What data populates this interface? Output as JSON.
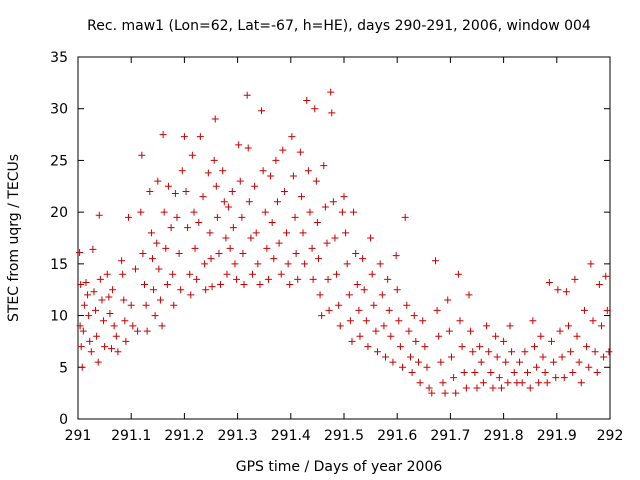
{
  "chart_data": {
    "type": "scatter",
    "title": "Rec. maw1 (Lon=62, Lat=-67, h=HE), days 290-291, 2006, window 004",
    "xlabel": "GPS time / Days of year 2006",
    "ylabel": "STEC from uqrg / TECUs",
    "xlim": [
      291,
      292
    ],
    "ylim": [
      0,
      35
    ],
    "x_ticks": [
      291,
      291.1,
      291.2,
      291.3,
      291.4,
      291.5,
      291.6,
      291.7,
      291.8,
      291.9,
      292
    ],
    "x_tick_labels": [
      "291",
      "291.1",
      "291.2",
      "291.3",
      "291.4",
      "291.5",
      "291.6",
      "291.7",
      "291.8",
      "291.9",
      "292"
    ],
    "y_ticks": [
      0,
      5,
      10,
      15,
      20,
      25,
      30,
      35
    ],
    "y_tick_labels": [
      "0",
      "5",
      "10",
      "15",
      "20",
      "25",
      "30",
      "35"
    ],
    "grid": false,
    "legend": "none",
    "marker": "+",
    "colors": {
      "points": "#cc0000",
      "axes": "#000000"
    },
    "series": [
      {
        "points": [
          [
            291.003,
            16.1
          ],
          [
            291.005,
            13.0
          ],
          [
            291.004,
            9.0
          ],
          [
            291.006,
            7.0
          ],
          [
            291.008,
            5.0
          ],
          [
            291.01,
            8.5
          ],
          [
            291.012,
            11.0
          ],
          [
            291.015,
            13.2
          ],
          [
            291.018,
            12.0
          ],
          [
            291.02,
            10.0
          ],
          [
            291.022,
            7.5
          ],
          [
            291.025,
            6.5
          ],
          [
            291.028,
            16.4
          ],
          [
            291.03,
            12.3
          ],
          [
            291.033,
            10.5
          ],
          [
            291.035,
            8.0
          ],
          [
            291.038,
            5.5
          ],
          [
            291.04,
            19.7
          ],
          [
            291.042,
            13.5
          ],
          [
            291.045,
            11.5
          ],
          [
            291.048,
            9.5
          ],
          [
            291.05,
            7.0
          ],
          [
            291.055,
            14.0
          ],
          [
            291.058,
            11.8
          ],
          [
            291.06,
            10.2
          ],
          [
            291.063,
            6.8
          ],
          [
            291.065,
            12.5
          ],
          [
            291.068,
            9.0
          ],
          [
            291.072,
            8.0
          ],
          [
            291.075,
            6.5
          ],
          [
            291.082,
            15.3
          ],
          [
            291.084,
            14.0
          ],
          [
            291.086,
            11.5
          ],
          [
            291.088,
            9.5
          ],
          [
            291.09,
            7.5
          ],
          [
            291.095,
            19.5
          ],
          [
            291.1,
            11.0
          ],
          [
            291.103,
            9.0
          ],
          [
            291.108,
            14.5
          ],
          [
            291.112,
            8.5
          ],
          [
            291.118,
            20.0
          ],
          [
            291.12,
            25.5
          ],
          [
            291.122,
            16.0
          ],
          [
            291.125,
            13.0
          ],
          [
            291.128,
            11.0
          ],
          [
            291.13,
            8.5
          ],
          [
            291.135,
            22.0
          ],
          [
            291.138,
            18.0
          ],
          [
            291.14,
            15.5
          ],
          [
            291.142,
            12.5
          ],
          [
            291.145,
            10.0
          ],
          [
            291.148,
            17.0
          ],
          [
            291.15,
            23.0
          ],
          [
            291.152,
            14.5
          ],
          [
            291.155,
            11.5
          ],
          [
            291.158,
            9.0
          ],
          [
            291.16,
            27.5
          ],
          [
            291.162,
            20.0
          ],
          [
            291.165,
            16.5
          ],
          [
            291.168,
            13.0
          ],
          [
            291.17,
            22.5
          ],
          [
            291.175,
            18.5
          ],
          [
            291.178,
            14.0
          ],
          [
            291.18,
            11.0
          ],
          [
            291.183,
            21.8
          ],
          [
            291.186,
            19.5
          ],
          [
            291.19,
            16.0
          ],
          [
            291.193,
            12.5
          ],
          [
            291.196,
            24.0
          ],
          [
            291.2,
            27.3
          ],
          [
            291.203,
            22.0
          ],
          [
            291.206,
            18.5
          ],
          [
            291.21,
            14.0
          ],
          [
            291.212,
            12.0
          ],
          [
            291.215,
            25.5
          ],
          [
            291.218,
            20.0
          ],
          [
            291.22,
            16.5
          ],
          [
            291.223,
            13.5
          ],
          [
            291.227,
            19.0
          ],
          [
            291.23,
            27.3
          ],
          [
            291.235,
            21.5
          ],
          [
            291.238,
            15.0
          ],
          [
            291.24,
            12.5
          ],
          [
            291.245,
            23.8
          ],
          [
            291.248,
            18.0
          ],
          [
            291.25,
            15.5
          ],
          [
            291.252,
            12.8
          ],
          [
            291.256,
            25.0
          ],
          [
            291.258,
            29.0
          ],
          [
            291.26,
            22.5
          ],
          [
            291.262,
            19.5
          ],
          [
            291.265,
            16.0
          ],
          [
            291.268,
            13.0
          ],
          [
            291.272,
            24.0
          ],
          [
            291.275,
            21.0
          ],
          [
            291.278,
            17.5
          ],
          [
            291.28,
            14.0
          ],
          [
            291.283,
            20.5
          ],
          [
            291.286,
            16.5
          ],
          [
            291.29,
            22.0
          ],
          [
            291.292,
            18.5
          ],
          [
            291.295,
            15.0
          ],
          [
            291.298,
            13.5
          ],
          [
            291.302,
            26.5
          ],
          [
            291.305,
            23.0
          ],
          [
            291.308,
            19.5
          ],
          [
            291.31,
            16.0
          ],
          [
            291.312,
            13.0
          ],
          [
            291.318,
            31.3
          ],
          [
            291.32,
            26.2
          ],
          [
            291.322,
            21.0
          ],
          [
            291.325,
            17.5
          ],
          [
            291.328,
            14.0
          ],
          [
            291.332,
            22.5
          ],
          [
            291.335,
            18.0
          ],
          [
            291.338,
            15.0
          ],
          [
            291.342,
            13.0
          ],
          [
            291.345,
            29.8
          ],
          [
            291.348,
            24.0
          ],
          [
            291.352,
            20.0
          ],
          [
            291.355,
            16.5
          ],
          [
            291.358,
            13.5
          ],
          [
            291.362,
            23.5
          ],
          [
            291.365,
            19.0
          ],
          [
            291.368,
            15.5
          ],
          [
            291.372,
            25.0
          ],
          [
            291.375,
            21.0
          ],
          [
            291.378,
            17.0
          ],
          [
            291.382,
            14.0
          ],
          [
            291.385,
            26.0
          ],
          [
            291.388,
            22.0
          ],
          [
            291.392,
            18.0
          ],
          [
            291.395,
            15.0
          ],
          [
            291.398,
            13.0
          ],
          [
            291.402,
            27.3
          ],
          [
            291.405,
            23.5
          ],
          [
            291.408,
            19.5
          ],
          [
            291.41,
            16.0
          ],
          [
            291.413,
            13.5
          ],
          [
            291.418,
            25.8
          ],
          [
            291.42,
            21.5
          ],
          [
            291.423,
            18.0
          ],
          [
            291.426,
            15.0
          ],
          [
            291.43,
            30.8
          ],
          [
            291.433,
            24.0
          ],
          [
            291.436,
            20.0
          ],
          [
            291.44,
            16.5
          ],
          [
            291.442,
            13.5
          ],
          [
            291.445,
            30.0
          ],
          [
            291.448,
            23.0
          ],
          [
            291.45,
            19.0
          ],
          [
            291.452,
            15.5
          ],
          [
            291.455,
            12.0
          ],
          [
            291.458,
            10.0
          ],
          [
            291.462,
            24.5
          ],
          [
            291.465,
            20.5
          ],
          [
            291.468,
            17.0
          ],
          [
            291.47,
            13.5
          ],
          [
            291.472,
            10.5
          ],
          [
            291.475,
            31.6
          ],
          [
            291.477,
            29.6
          ],
          [
            291.48,
            21.0
          ],
          [
            291.483,
            17.5
          ],
          [
            291.486,
            14.0
          ],
          [
            291.49,
            11.0
          ],
          [
            291.493,
            9.0
          ],
          [
            291.497,
            20.0
          ],
          [
            291.5,
            21.5
          ],
          [
            291.503,
            18.0
          ],
          [
            291.506,
            15.0
          ],
          [
            291.51,
            12.0
          ],
          [
            291.512,
            9.5
          ],
          [
            291.515,
            7.5
          ],
          [
            291.518,
            20.0
          ],
          [
            291.522,
            16.0
          ],
          [
            291.525,
            13.0
          ],
          [
            291.528,
            10.5
          ],
          [
            291.53,
            8.0
          ],
          [
            291.535,
            15.5
          ],
          [
            291.538,
            12.5
          ],
          [
            291.542,
            9.5
          ],
          [
            291.545,
            7.0
          ],
          [
            291.55,
            17.5
          ],
          [
            291.553,
            14.0
          ],
          [
            291.556,
            11.0
          ],
          [
            291.56,
            8.5
          ],
          [
            291.563,
            6.5
          ],
          [
            291.568,
            15.0
          ],
          [
            291.572,
            12.0
          ],
          [
            291.575,
            9.0
          ],
          [
            291.578,
            6.0
          ],
          [
            291.582,
            13.5
          ],
          [
            291.585,
            10.5
          ],
          [
            291.588,
            8.0
          ],
          [
            291.592,
            5.5
          ],
          [
            291.598,
            15.8
          ],
          [
            291.6,
            12.5
          ],
          [
            291.603,
            9.5
          ],
          [
            291.606,
            7.0
          ],
          [
            291.61,
            5.0
          ],
          [
            291.615,
            19.5
          ],
          [
            291.618,
            11.0
          ],
          [
            291.622,
            8.5
          ],
          [
            291.625,
            6.0
          ],
          [
            291.628,
            4.5
          ],
          [
            291.632,
            10.0
          ],
          [
            291.635,
            7.5
          ],
          [
            291.64,
            5.5
          ],
          [
            291.643,
            3.5
          ],
          [
            291.648,
            9.5
          ],
          [
            291.652,
            7.0
          ],
          [
            291.656,
            5.0
          ],
          [
            291.66,
            3.0
          ],
          [
            291.665,
            2.5
          ],
          [
            291.672,
            15.3
          ],
          [
            291.675,
            10.5
          ],
          [
            291.678,
            8.0
          ],
          [
            291.682,
            5.5
          ],
          [
            291.686,
            3.5
          ],
          [
            291.69,
            2.5
          ],
          [
            291.695,
            11.5
          ],
          [
            291.698,
            8.5
          ],
          [
            291.702,
            6.0
          ],
          [
            291.706,
            4.0
          ],
          [
            291.71,
            2.5
          ],
          [
            291.715,
            14.0
          ],
          [
            291.718,
            9.5
          ],
          [
            291.722,
            7.0
          ],
          [
            291.726,
            4.5
          ],
          [
            291.73,
            3.0
          ],
          [
            291.735,
            12.0
          ],
          [
            291.738,
            8.5
          ],
          [
            291.742,
            6.5
          ],
          [
            291.746,
            4.5
          ],
          [
            291.75,
            3.0
          ],
          [
            291.755,
            7.0
          ],
          [
            291.758,
            5.5
          ],
          [
            291.762,
            3.5
          ],
          [
            291.768,
            9.0
          ],
          [
            291.772,
            6.5
          ],
          [
            291.776,
            4.5
          ],
          [
            291.78,
            3.0
          ],
          [
            291.785,
            8.0
          ],
          [
            291.788,
            6.0
          ],
          [
            291.792,
            4.0
          ],
          [
            291.796,
            3.0
          ],
          [
            291.8,
            7.5
          ],
          [
            291.804,
            5.5
          ],
          [
            291.808,
            3.5
          ],
          [
            291.812,
            9.0
          ],
          [
            291.815,
            6.5
          ],
          [
            291.82,
            4.5
          ],
          [
            291.825,
            3.5
          ],
          [
            291.83,
            5.5
          ],
          [
            291.835,
            3.5
          ],
          [
            291.84,
            6.5
          ],
          [
            291.845,
            4.5
          ],
          [
            291.85,
            3.0
          ],
          [
            291.855,
            9.5
          ],
          [
            291.858,
            7.0
          ],
          [
            291.862,
            5.0
          ],
          [
            291.866,
            3.5
          ],
          [
            291.87,
            8.0
          ],
          [
            291.874,
            6.0
          ],
          [
            291.878,
            4.5
          ],
          [
            291.882,
            3.5
          ],
          [
            291.886,
            13.2
          ],
          [
            291.89,
            7.5
          ],
          [
            291.894,
            5.5
          ],
          [
            291.898,
            4.0
          ],
          [
            291.902,
            12.5
          ],
          [
            291.906,
            8.5
          ],
          [
            291.91,
            6.0
          ],
          [
            291.914,
            4.0
          ],
          [
            291.918,
            12.3
          ],
          [
            291.922,
            9.0
          ],
          [
            291.926,
            6.5
          ],
          [
            291.93,
            4.5
          ],
          [
            291.934,
            13.5
          ],
          [
            291.938,
            8.0
          ],
          [
            291.942,
            5.5
          ],
          [
            291.946,
            3.5
          ],
          [
            291.952,
            10.5
          ],
          [
            291.956,
            7.0
          ],
          [
            291.96,
            5.0
          ],
          [
            291.964,
            15.0
          ],
          [
            291.968,
            9.5
          ],
          [
            291.972,
            6.5
          ],
          [
            291.976,
            4.5
          ],
          [
            291.98,
            13.0
          ],
          [
            291.984,
            9.0
          ],
          [
            291.988,
            6.0
          ],
          [
            291.992,
            13.8
          ],
          [
            291.995,
            10.5
          ],
          [
            291.998,
            6.5
          ]
        ]
      }
    ]
  }
}
